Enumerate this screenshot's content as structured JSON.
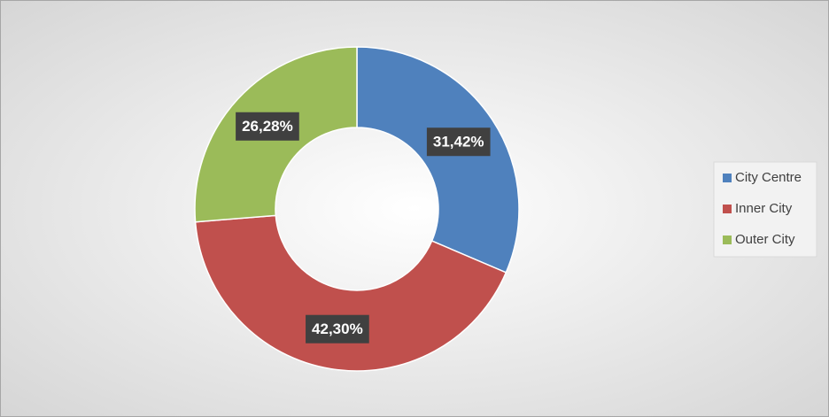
{
  "chart_data": {
    "type": "donut",
    "categories": [
      "City Centre",
      "Inner City",
      "Outer City"
    ],
    "values": [
      31.42,
      42.3,
      26.28
    ],
    "value_labels": [
      "31,42%",
      "42,30%",
      "26,28%"
    ],
    "colors": [
      "#4f81bd",
      "#c0504d",
      "#9bbb59"
    ],
    "legend": "right"
  }
}
